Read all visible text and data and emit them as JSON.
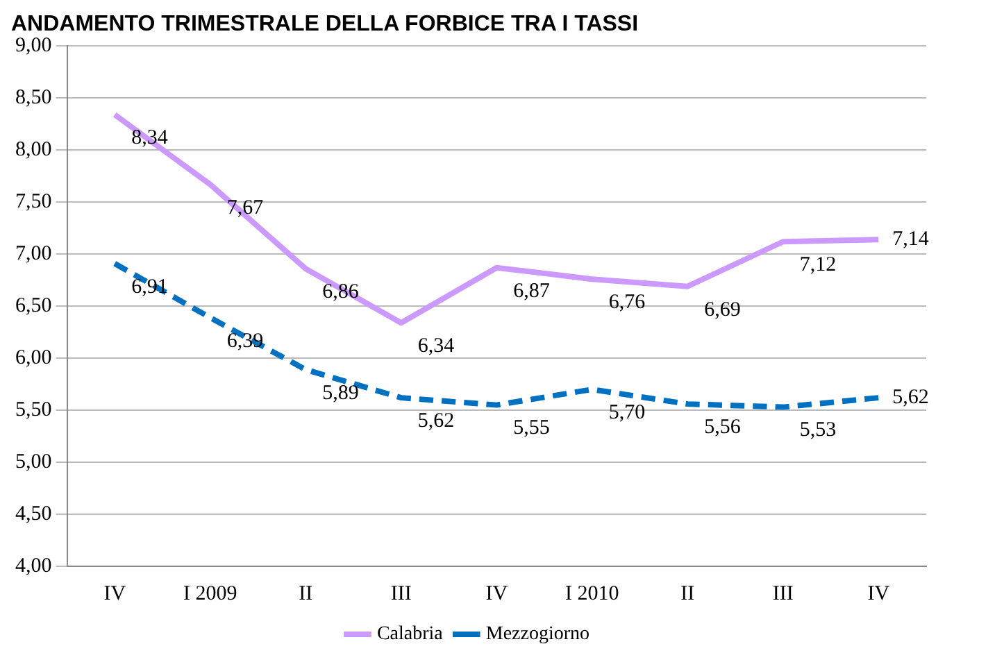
{
  "chart_data": {
    "type": "line",
    "title": "ANDAMENTO TRIMESTRALE DELLA FORBICE TRA I TASSI",
    "categories": [
      "IV",
      "I 2009",
      "II",
      "III",
      "IV",
      "I 2010",
      "II",
      "III",
      "IV"
    ],
    "series": [
      {
        "name": "Calabria",
        "color": "#cc99ff",
        "line_style": "solid",
        "values": [
          8.34,
          7.67,
          6.86,
          6.34,
          6.87,
          6.76,
          6.69,
          7.12,
          7.14
        ],
        "value_labels": [
          "8,34",
          "7,67",
          "6,86",
          "6,34",
          "6,87",
          "6,76",
          "6,69",
          "7,12",
          "7,14"
        ]
      },
      {
        "name": "Mezzogiorno",
        "color": "#0070c0",
        "line_style": "dashed",
        "values": [
          6.91,
          6.39,
          5.89,
          5.62,
          5.55,
          5.7,
          5.56,
          5.53,
          5.62
        ],
        "value_labels": [
          "6,91",
          "6,39",
          "5,89",
          "5,62",
          "5,55",
          "5,70",
          "5,56",
          "5,53",
          "5,62"
        ]
      }
    ],
    "ylim": [
      4,
      9
    ],
    "yticks": [
      {
        "value": 4,
        "label": "4,00"
      },
      {
        "value": 4.5,
        "label": "4,50"
      },
      {
        "value": 5,
        "label": "5,00"
      },
      {
        "value": 5.5,
        "label": "5,50"
      },
      {
        "value": 6,
        "label": "6,00"
      },
      {
        "value": 6.5,
        "label": "6,50"
      },
      {
        "value": 7,
        "label": "7,00"
      },
      {
        "value": 7.5,
        "label": "7,50"
      },
      {
        "value": 8,
        "label": "8,00"
      },
      {
        "value": 8.5,
        "label": "8,50"
      },
      {
        "value": 9,
        "label": "9,00"
      }
    ],
    "grid": "y",
    "legend": "bottom",
    "marker": "none"
  }
}
